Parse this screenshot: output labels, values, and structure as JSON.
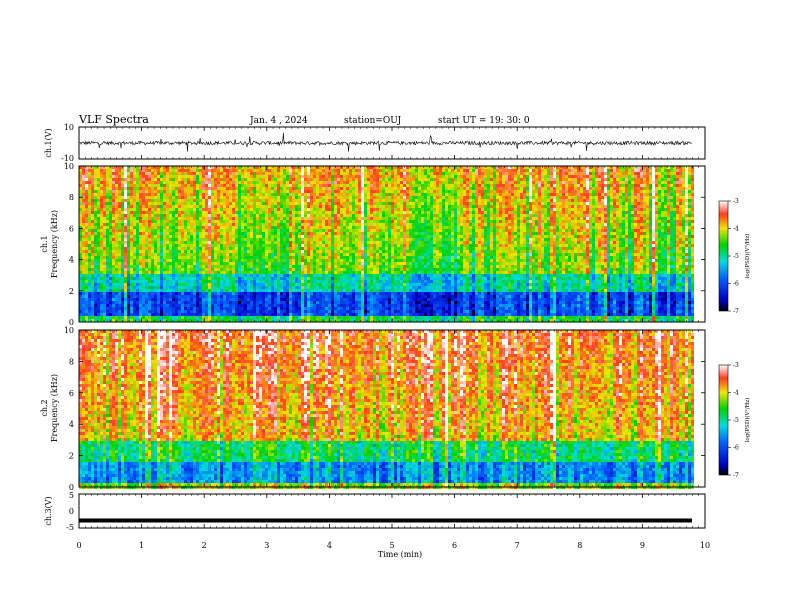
{
  "header": {
    "title": "VLF Spectra",
    "date": "Jan. 4 , 2024",
    "station": "station=OUJ",
    "start_ut": "start UT =  19: 30: 0"
  },
  "chart_data": [
    {
      "type": "line",
      "panel": "ch1-waveform",
      "ylabel": "ch.1(V)",
      "ylim": [
        -10,
        10
      ],
      "y_ticks": [
        "10",
        "-10"
      ],
      "description_values": "noisy waveform centered near 0 V with spikes",
      "x_range_min": [
        0,
        10
      ]
    },
    {
      "type": "heatmap",
      "panel": "ch1-spectrogram",
      "ylabel_line1": "ch.1",
      "ylabel_line2": "Frequency (kHz)",
      "ylim": [
        0,
        10
      ],
      "y_ticks": [
        "0",
        "2",
        "4",
        "6",
        "8",
        "10"
      ],
      "colorbar": {
        "label": "log(PSD)(V²/Hz)",
        "range": [
          -7,
          -3
        ],
        "ticks": [
          "-3",
          "-4",
          "-5",
          "-6",
          "-7"
        ]
      }
    },
    {
      "type": "heatmap",
      "panel": "ch2-spectrogram",
      "ylabel_line1": "ch.2",
      "ylabel_line2": "Frequency (kHz)",
      "ylim": [
        0,
        10
      ],
      "y_ticks": [
        "0",
        "2",
        "4",
        "6",
        "8",
        "10"
      ],
      "colorbar": {
        "label": "log(PSD)(V²/Hz)",
        "range": [
          -7,
          -3
        ],
        "ticks": [
          "-3",
          "-4",
          "-5",
          "-6",
          "-7"
        ]
      }
    },
    {
      "type": "line",
      "panel": "ch3-waveform",
      "ylabel": "ch.3(V)",
      "ylim": [
        -5,
        5
      ],
      "y_ticks": [
        "5",
        "0",
        "-5"
      ],
      "y_values_constant": -2.8,
      "xlabel": "Time (min)",
      "x_ticks": [
        "0",
        "1",
        "2",
        "3",
        "4",
        "5",
        "6",
        "7",
        "8",
        "9",
        "10"
      ],
      "xlim": [
        0,
        10
      ]
    }
  ],
  "colors": {
    "axis": "#000000",
    "background": "#ffffff"
  }
}
